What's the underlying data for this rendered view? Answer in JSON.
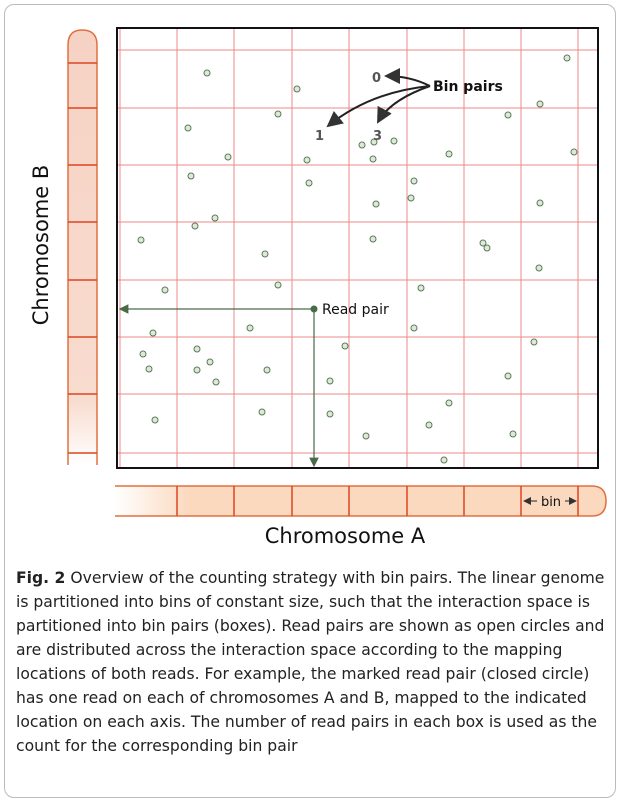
{
  "figure": {
    "axis_b_label": "Chromosome B",
    "axis_a_label": "Chromosome A",
    "bin_label": "bin",
    "read_pair_label": "Read pair",
    "bin_pairs_label": "Bin pairs",
    "bin_pair_markers": [
      "0",
      "1",
      "3"
    ]
  },
  "caption": {
    "label": "Fig. 2",
    "text": "Overview of the counting strategy with bin pairs. The linear genome is partitioned into bins of constant size, such that the interaction space is partitioned into bin pairs (boxes). Read pairs are shown as open circles and are distributed across the interaction space according to the mapping locations of both reads. For example, the marked read pair (closed circle) has one read on each of chromosomes A and B, mapped to the indicated location on each axis. The number of read pairs in each box is used as the count for the corresponding bin pair"
  }
}
